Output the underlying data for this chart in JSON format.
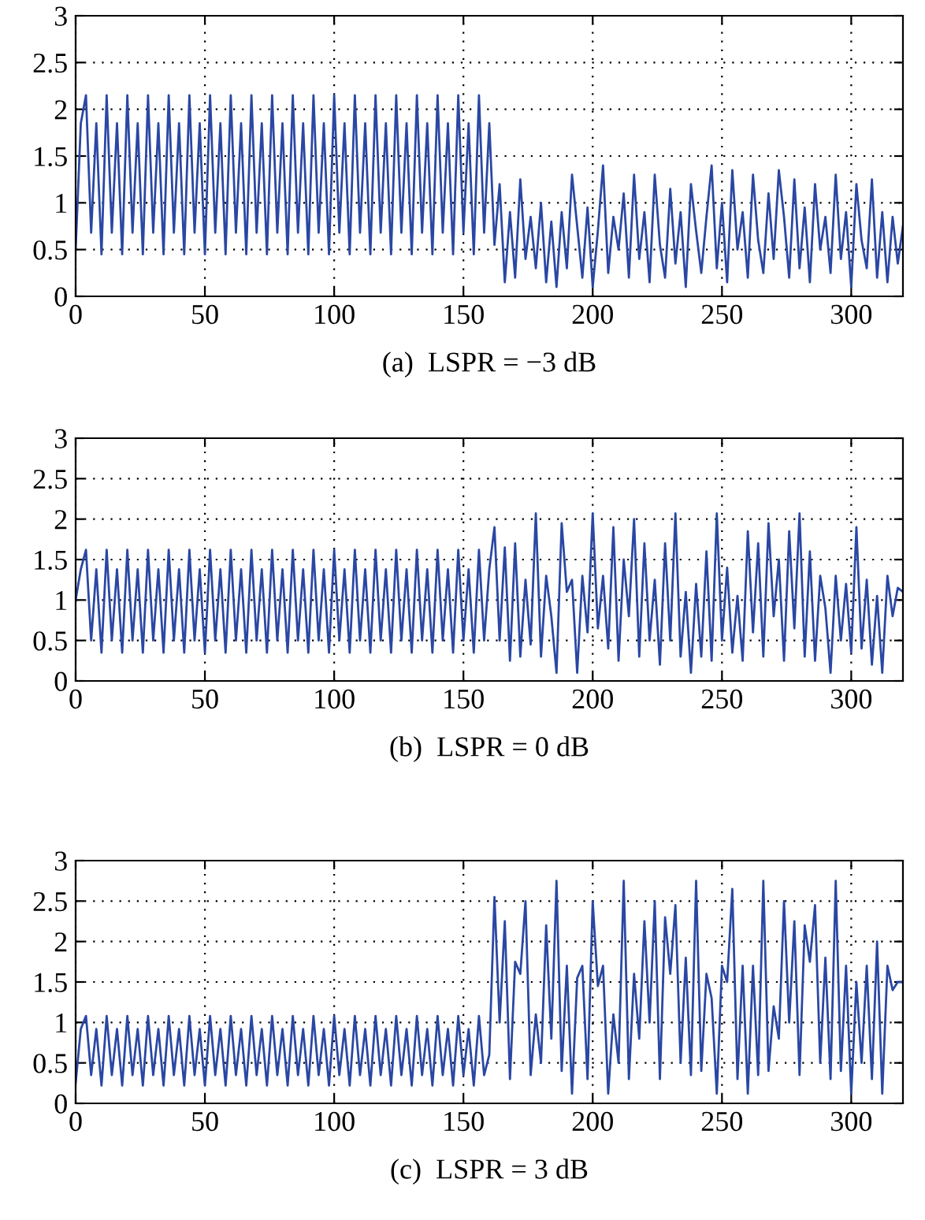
{
  "chart_data": [
    {
      "type": "line",
      "xlabel": "(a)  LSPR = −3 dB",
      "xlim": [
        0,
        320
      ],
      "xticks": [
        0,
        50,
        100,
        150,
        200,
        250,
        300
      ],
      "ylim": [
        0,
        3
      ],
      "yticks": [
        0,
        0.5,
        1,
        1.5,
        2,
        2.5,
        3
      ],
      "grid": true,
      "line_style": "solid",
      "marker": "none",
      "x": [
        0,
        2,
        4,
        6,
        8,
        10,
        12,
        14,
        16,
        18,
        20,
        22,
        24,
        26,
        28,
        30,
        32,
        34,
        36,
        38,
        40,
        42,
        44,
        46,
        48,
        50,
        52,
        54,
        56,
        58,
        60,
        62,
        64,
        66,
        68,
        70,
        72,
        74,
        76,
        78,
        80,
        82,
        84,
        86,
        88,
        90,
        92,
        94,
        96,
        98,
        100,
        102,
        104,
        106,
        108,
        110,
        112,
        114,
        116,
        118,
        120,
        122,
        124,
        126,
        128,
        130,
        132,
        134,
        136,
        138,
        140,
        142,
        144,
        146,
        148,
        150,
        152,
        154,
        156,
        158,
        160,
        162,
        164,
        166,
        168,
        170,
        172,
        174,
        176,
        178,
        180,
        182,
        184,
        186,
        188,
        190,
        192,
        194,
        196,
        198,
        200,
        202,
        204,
        206,
        208,
        210,
        212,
        214,
        216,
        218,
        220,
        222,
        224,
        226,
        228,
        230,
        232,
        234,
        236,
        238,
        240,
        242,
        244,
        246,
        248,
        250,
        252,
        254,
        256,
        258,
        260,
        262,
        264,
        266,
        268,
        270,
        272,
        274,
        276,
        278,
        280,
        282,
        284,
        286,
        288,
        290,
        292,
        294,
        296,
        298,
        300,
        302,
        304,
        306,
        308,
        310,
        312,
        314,
        316,
        318,
        320
      ],
      "series": [
        {
          "color": "#2a47a3",
          "values": [
            0.5,
            1.85,
            2.15,
            0.68,
            1.85,
            0.45,
            2.15,
            0.68,
            1.85,
            0.45,
            2.15,
            0.68,
            1.85,
            0.45,
            2.15,
            0.68,
            1.85,
            0.45,
            2.15,
            0.68,
            1.85,
            0.45,
            2.15,
            0.68,
            1.85,
            0.45,
            2.15,
            0.68,
            1.85,
            0.45,
            2.15,
            0.68,
            1.85,
            0.45,
            2.15,
            0.68,
            1.85,
            0.45,
            2.15,
            0.68,
            1.85,
            0.45,
            2.15,
            0.68,
            1.85,
            0.45,
            2.15,
            0.68,
            1.85,
            0.45,
            2.15,
            0.68,
            1.85,
            0.45,
            2.15,
            0.68,
            1.85,
            0.45,
            2.15,
            0.68,
            1.85,
            0.45,
            2.15,
            0.68,
            1.85,
            0.45,
            2.15,
            0.68,
            1.85,
            0.45,
            2.15,
            0.68,
            1.85,
            0.45,
            2.15,
            0.68,
            1.85,
            0.45,
            2.15,
            0.68,
            1.85,
            0.55,
            1.2,
            0.15,
            0.9,
            0.2,
            1.25,
            0.4,
            0.85,
            0.3,
            1.0,
            0.15,
            0.8,
            0.1,
            0.9,
            0.3,
            1.3,
            0.75,
            0.2,
            0.95,
            0.1,
            0.7,
            1.4,
            0.25,
            0.85,
            0.5,
            1.1,
            0.2,
            1.3,
            0.4,
            0.9,
            0.15,
            1.3,
            0.55,
            0.2,
            1.15,
            0.35,
            0.9,
            0.1,
            1.2,
            0.7,
            0.25,
            0.85,
            1.4,
            0.3,
            1.0,
            0.15,
            1.35,
            0.5,
            0.9,
            0.2,
            1.3,
            0.6,
            0.25,
            1.1,
            0.4,
            1.35,
            0.85,
            0.2,
            1.25,
            0.3,
            0.95,
            0.15,
            1.2,
            0.5,
            0.85,
            0.25,
            1.3,
            0.4,
            0.9,
            0.1,
            1.2,
            0.6,
            0.3,
            1.25,
            0.2,
            0.9,
            0.15,
            0.85,
            0.35,
            0.75
          ]
        }
      ]
    },
    {
      "type": "line",
      "xlabel": "(b)  LSPR = 0 dB",
      "xlim": [
        0,
        320
      ],
      "xticks": [
        0,
        50,
        100,
        150,
        200,
        250,
        300
      ],
      "ylim": [
        0,
        3
      ],
      "yticks": [
        0,
        0.5,
        1,
        1.5,
        2,
        2.5,
        3
      ],
      "grid": true,
      "line_style": "solid",
      "marker": "none",
      "x": [
        0,
        2,
        4,
        6,
        8,
        10,
        12,
        14,
        16,
        18,
        20,
        22,
        24,
        26,
        28,
        30,
        32,
        34,
        36,
        38,
        40,
        42,
        44,
        46,
        48,
        50,
        52,
        54,
        56,
        58,
        60,
        62,
        64,
        66,
        68,
        70,
        72,
        74,
        76,
        78,
        80,
        82,
        84,
        86,
        88,
        90,
        92,
        94,
        96,
        98,
        100,
        102,
        104,
        106,
        108,
        110,
        112,
        114,
        116,
        118,
        120,
        122,
        124,
        126,
        128,
        130,
        132,
        134,
        136,
        138,
        140,
        142,
        144,
        146,
        148,
        150,
        152,
        154,
        156,
        158,
        160,
        162,
        164,
        166,
        168,
        170,
        172,
        174,
        176,
        178,
        180,
        182,
        184,
        186,
        188,
        190,
        192,
        194,
        196,
        198,
        200,
        202,
        204,
        206,
        208,
        210,
        212,
        214,
        216,
        218,
        220,
        222,
        224,
        226,
        228,
        230,
        232,
        234,
        236,
        238,
        240,
        242,
        244,
        246,
        248,
        250,
        252,
        254,
        256,
        258,
        260,
        262,
        264,
        266,
        268,
        270,
        272,
        274,
        276,
        278,
        280,
        282,
        284,
        286,
        288,
        290,
        292,
        294,
        296,
        298,
        300,
        302,
        304,
        306,
        308,
        310,
        312,
        314,
        316,
        318,
        320
      ],
      "series": [
        {
          "color": "#2a47a3",
          "values": [
            1.0,
            1.38,
            1.62,
            0.5,
            1.38,
            0.35,
            1.62,
            0.5,
            1.38,
            0.35,
            1.62,
            0.5,
            1.38,
            0.35,
            1.62,
            0.5,
            1.38,
            0.35,
            1.62,
            0.5,
            1.38,
            0.35,
            1.62,
            0.5,
            1.38,
            0.35,
            1.62,
            0.5,
            1.38,
            0.35,
            1.62,
            0.5,
            1.38,
            0.35,
            1.62,
            0.5,
            1.38,
            0.35,
            1.62,
            0.5,
            1.38,
            0.35,
            1.62,
            0.5,
            1.38,
            0.35,
            1.62,
            0.5,
            1.38,
            0.35,
            1.62,
            0.5,
            1.38,
            0.35,
            1.62,
            0.5,
            1.38,
            0.35,
            1.62,
            0.5,
            1.38,
            0.35,
            1.62,
            0.5,
            1.38,
            0.35,
            1.62,
            0.5,
            1.38,
            0.35,
            1.62,
            0.5,
            1.38,
            0.35,
            1.62,
            0.5,
            1.38,
            0.35,
            1.62,
            0.5,
            1.38,
            1.9,
            0.5,
            1.65,
            0.25,
            1.7,
            0.3,
            1.25,
            0.45,
            2.07,
            0.3,
            1.3,
            0.8,
            0.1,
            1.95,
            1.1,
            1.25,
            0.1,
            1.3,
            0.6,
            2.07,
            0.65,
            1.3,
            0.4,
            1.9,
            0.25,
            1.5,
            0.8,
            2.0,
            0.3,
            1.7,
            0.5,
            1.25,
            0.2,
            1.7,
            0.5,
            2.07,
            0.3,
            1.1,
            0.1,
            1.2,
            0.3,
            1.6,
            0.25,
            2.07,
            0.5,
            1.4,
            0.35,
            1.05,
            0.25,
            1.85,
            0.6,
            1.7,
            0.3,
            1.95,
            0.8,
            1.5,
            0.25,
            1.85,
            0.65,
            2.07,
            0.3,
            1.6,
            0.25,
            1.3,
            0.9,
            0.1,
            1.3,
            0.5,
            1.2,
            0.35,
            1.9,
            0.4,
            1.25,
            0.2,
            1.05,
            0.1,
            1.3,
            0.8,
            1.15,
            1.1
          ]
        }
      ]
    },
    {
      "type": "line",
      "xlabel": "(c)  LSPR = 3 dB",
      "xlim": [
        0,
        320
      ],
      "xticks": [
        0,
        50,
        100,
        150,
        200,
        250,
        300
      ],
      "ylim": [
        0,
        3
      ],
      "yticks": [
        0,
        0.5,
        1,
        1.5,
        2,
        2.5,
        3
      ],
      "grid": true,
      "line_style": "solid",
      "marker": "none",
      "x": [
        0,
        2,
        4,
        6,
        8,
        10,
        12,
        14,
        16,
        18,
        20,
        22,
        24,
        26,
        28,
        30,
        32,
        34,
        36,
        38,
        40,
        42,
        44,
        46,
        48,
        50,
        52,
        54,
        56,
        58,
        60,
        62,
        64,
        66,
        68,
        70,
        72,
        74,
        76,
        78,
        80,
        82,
        84,
        86,
        88,
        90,
        92,
        94,
        96,
        98,
        100,
        102,
        104,
        106,
        108,
        110,
        112,
        114,
        116,
        118,
        120,
        122,
        124,
        126,
        128,
        130,
        132,
        134,
        136,
        138,
        140,
        142,
        144,
        146,
        148,
        150,
        152,
        154,
        156,
        158,
        160,
        162,
        164,
        166,
        168,
        170,
        172,
        174,
        176,
        178,
        180,
        182,
        184,
        186,
        188,
        190,
        192,
        194,
        196,
        198,
        200,
        202,
        204,
        206,
        208,
        210,
        212,
        214,
        216,
        218,
        220,
        222,
        224,
        226,
        228,
        230,
        232,
        234,
        236,
        238,
        240,
        242,
        244,
        246,
        248,
        250,
        252,
        254,
        256,
        258,
        260,
        262,
        264,
        266,
        268,
        270,
        272,
        274,
        276,
        278,
        280,
        282,
        284,
        286,
        288,
        290,
        292,
        294,
        296,
        298,
        300,
        302,
        304,
        306,
        308,
        310,
        312,
        314,
        316,
        318,
        320
      ],
      "series": [
        {
          "color": "#2a47a3",
          "values": [
            0.25,
            0.92,
            1.08,
            0.35,
            0.92,
            0.22,
            1.08,
            0.35,
            0.92,
            0.22,
            1.08,
            0.35,
            0.92,
            0.22,
            1.08,
            0.35,
            0.92,
            0.22,
            1.08,
            0.35,
            0.92,
            0.22,
            1.08,
            0.35,
            0.92,
            0.22,
            1.08,
            0.35,
            0.92,
            0.22,
            1.08,
            0.35,
            0.92,
            0.22,
            1.08,
            0.35,
            0.92,
            0.22,
            1.08,
            0.35,
            0.92,
            0.22,
            1.08,
            0.35,
            0.92,
            0.22,
            1.08,
            0.35,
            0.92,
            0.22,
            1.08,
            0.35,
            0.92,
            0.22,
            1.08,
            0.35,
            0.92,
            0.22,
            1.08,
            0.35,
            0.92,
            0.22,
            1.08,
            0.35,
            0.92,
            0.22,
            1.08,
            0.35,
            0.92,
            0.22,
            1.08,
            0.35,
            0.92,
            0.22,
            1.08,
            0.35,
            0.92,
            0.22,
            1.08,
            0.35,
            0.6,
            2.55,
            1.0,
            2.25,
            0.3,
            1.75,
            1.6,
            2.5,
            0.35,
            1.1,
            0.5,
            2.2,
            0.8,
            2.75,
            0.4,
            1.7,
            0.12,
            1.55,
            1.7,
            0.3,
            2.5,
            1.45,
            1.7,
            0.12,
            1.1,
            0.5,
            2.75,
            0.3,
            1.6,
            0.8,
            2.25,
            1.0,
            2.5,
            0.3,
            2.3,
            1.6,
            2.45,
            0.5,
            1.8,
            0.35,
            2.75,
            0.4,
            1.6,
            1.3,
            0.12,
            1.7,
            1.5,
            2.65,
            0.3,
            1.7,
            0.12,
            1.7,
            0.35,
            2.75,
            0.4,
            1.2,
            0.8,
            2.5,
            1.0,
            2.25,
            0.35,
            2.2,
            1.75,
            2.45,
            0.5,
            1.8,
            0.3,
            2.75,
            0.4,
            1.7,
            0.12,
            1.5,
            0.5,
            1.7,
            0.3,
            2.0,
            0.12,
            1.7,
            1.4,
            1.5,
            1.5
          ]
        }
      ]
    }
  ]
}
